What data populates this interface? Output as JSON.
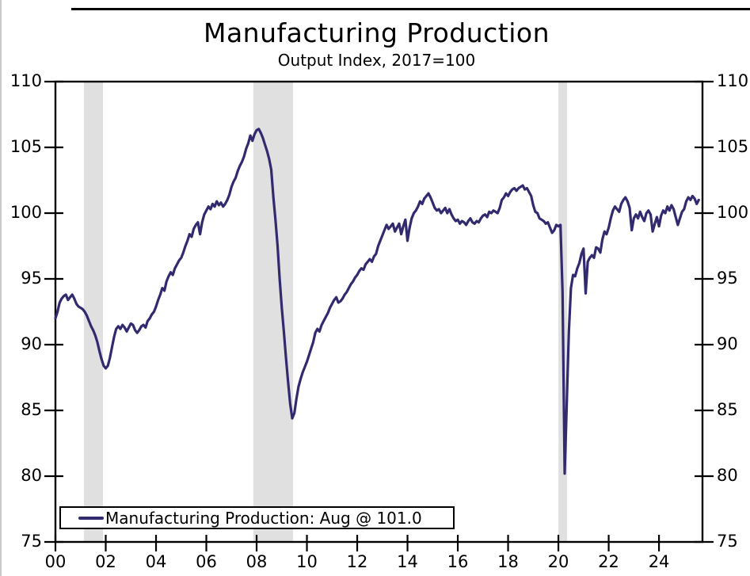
{
  "figure": {
    "title": "Manufacturing Production",
    "subtitle": "Output Index, 2017=100",
    "legend_label": "Manufacturing Production: Aug @ 101.0"
  },
  "chart_data": {
    "type": "line",
    "title": "Manufacturing Production",
    "subtitle": "Output Index, 2017=100",
    "xlabel": "",
    "ylabel": "Output Index, 2017=100",
    "xlim": [
      2000,
      2025.73
    ],
    "ylim": [
      75,
      110
    ],
    "grid": false,
    "legend_position": "bottom-left",
    "line_color": "#312a6e",
    "band_color": "#e0e0e0",
    "axis_color": "#000000",
    "y_ticks": [
      75,
      80,
      85,
      90,
      95,
      100,
      105,
      110
    ],
    "x_ticks": [
      {
        "x": 2000,
        "label": "00"
      },
      {
        "x": 2002,
        "label": "02"
      },
      {
        "x": 2004,
        "label": "04"
      },
      {
        "x": 2006,
        "label": "06"
      },
      {
        "x": 2008,
        "label": "08"
      },
      {
        "x": 2010,
        "label": "10"
      },
      {
        "x": 2012,
        "label": "12"
      },
      {
        "x": 2014,
        "label": "14"
      },
      {
        "x": 2016,
        "label": "16"
      },
      {
        "x": 2018,
        "label": "18"
      },
      {
        "x": 2020,
        "label": "20"
      },
      {
        "x": 2022,
        "label": "22"
      },
      {
        "x": 2024,
        "label": "24"
      }
    ],
    "recession_bands": [
      [
        2001.13,
        2001.89
      ],
      [
        2007.87,
        2009.45
      ],
      [
        2020.0,
        2020.35
      ]
    ],
    "series": [
      {
        "name": "Manufacturing Production: Aug @ 101.0",
        "frequency": "monthly",
        "x_start_year": 2000,
        "x_start_month": 1,
        "last_point": {
          "label": "Aug",
          "value": 101.0
        },
        "values": [
          92.0,
          92.5,
          93.2,
          93.5,
          93.7,
          93.8,
          93.4,
          93.6,
          93.8,
          93.5,
          93.1,
          92.9,
          92.8,
          92.7,
          92.5,
          92.2,
          91.8,
          91.4,
          91.1,
          90.7,
          90.2,
          89.5,
          88.9,
          88.4,
          88.2,
          88.4,
          89.0,
          89.8,
          90.6,
          91.2,
          91.4,
          91.2,
          91.5,
          91.3,
          91.0,
          91.3,
          91.6,
          91.5,
          91.1,
          90.9,
          91.1,
          91.4,
          91.5,
          91.3,
          91.8,
          92.0,
          92.3,
          92.5,
          92.9,
          93.4,
          93.8,
          94.3,
          94.1,
          94.8,
          95.2,
          95.5,
          95.3,
          95.8,
          96.1,
          96.4,
          96.6,
          97.0,
          97.5,
          97.9,
          98.4,
          98.2,
          98.8,
          99.1,
          99.3,
          98.4,
          99.3,
          99.9,
          100.2,
          100.5,
          100.3,
          100.7,
          100.5,
          100.9,
          100.6,
          100.8,
          100.5,
          100.7,
          101.0,
          101.4,
          102.0,
          102.4,
          102.7,
          103.2,
          103.6,
          103.9,
          104.3,
          104.9,
          105.3,
          105.9,
          105.5,
          106.0,
          106.3,
          106.4,
          106.1,
          105.7,
          105.2,
          104.7,
          104.1,
          103.3,
          101.2,
          99.5,
          97.5,
          95.0,
          92.8,
          91.0,
          89.0,
          87.2,
          85.5,
          84.4,
          84.8,
          85.9,
          86.8,
          87.4,
          87.9,
          88.3,
          88.7,
          89.2,
          89.7,
          90.2,
          90.9,
          91.2,
          91.0,
          91.5,
          91.8,
          92.1,
          92.4,
          92.8,
          93.1,
          93.4,
          93.6,
          93.2,
          93.3,
          93.5,
          93.8,
          94.0,
          94.3,
          94.6,
          94.8,
          95.1,
          95.3,
          95.6,
          95.8,
          95.7,
          96.1,
          96.3,
          96.5,
          96.3,
          96.7,
          96.9,
          97.5,
          97.9,
          98.3,
          98.7,
          99.1,
          98.8,
          99.0,
          99.2,
          98.6,
          98.9,
          99.2,
          98.4,
          99.0,
          99.5,
          97.9,
          98.9,
          99.6,
          100.0,
          100.2,
          100.5,
          100.9,
          100.7,
          101.1,
          101.3,
          101.5,
          101.2,
          100.8,
          100.4,
          100.2,
          100.3,
          100.0,
          100.2,
          100.4,
          100.0,
          100.3,
          99.9,
          99.6,
          99.4,
          99.5,
          99.2,
          99.4,
          99.3,
          99.1,
          99.4,
          99.6,
          99.3,
          99.2,
          99.4,
          99.3,
          99.6,
          99.8,
          99.9,
          99.7,
          100.1,
          100.0,
          100.2,
          100.1,
          100.0,
          100.4,
          101.0,
          101.2,
          101.5,
          101.3,
          101.6,
          101.8,
          101.9,
          101.7,
          101.9,
          102.0,
          102.1,
          101.8,
          101.9,
          101.6,
          101.3,
          100.6,
          100.1,
          100.0,
          99.6,
          99.5,
          99.4,
          99.2,
          99.3,
          98.9,
          98.5,
          98.7,
          99.1,
          99.0,
          99.1,
          94.0,
          80.2,
          85.5,
          91.0,
          94.3,
          95.3,
          95.2,
          95.8,
          96.2,
          96.9,
          97.3,
          93.9,
          96.3,
          96.6,
          96.8,
          96.6,
          97.4,
          97.3,
          97.0,
          98.0,
          98.6,
          98.4,
          98.9,
          99.6,
          100.2,
          100.5,
          100.3,
          100.1,
          100.7,
          101.0,
          101.2,
          100.9,
          100.4,
          98.7,
          99.6,
          99.9,
          99.6,
          100.1,
          99.7,
          99.4,
          100.0,
          100.2,
          99.9,
          98.6,
          99.2,
          99.7,
          99.0,
          99.8,
          100.2,
          100.0,
          100.5,
          100.2,
          100.6,
          100.3,
          99.7,
          99.1,
          99.6,
          100.1,
          100.3,
          100.9,
          101.2,
          101.0,
          101.3,
          101.1,
          100.7,
          101.0
        ]
      }
    ]
  }
}
